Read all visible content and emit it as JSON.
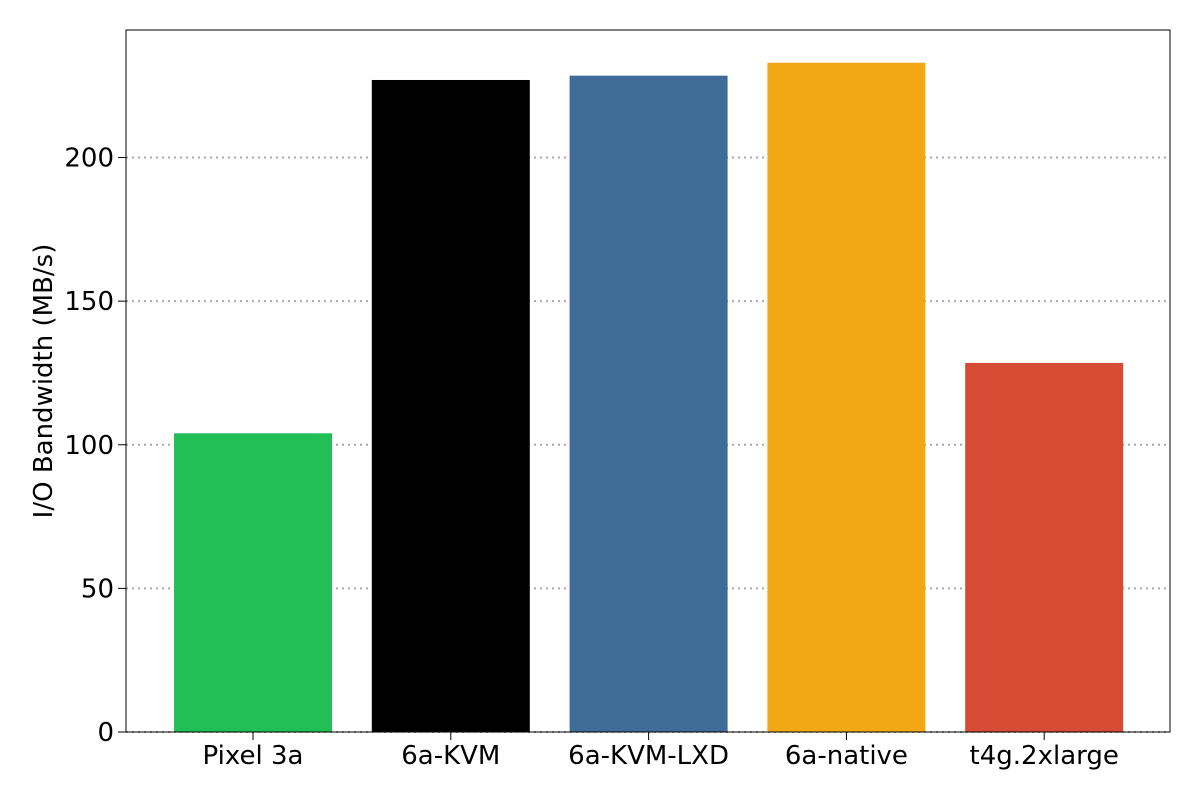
{
  "chart_data": {
    "type": "bar",
    "title": "",
    "xlabel": "",
    "ylabel": "I/O Bandwidth (MB/s)",
    "categories": [
      "Pixel 3a",
      "6a-KVM",
      "6a-KVM-LXD",
      "6a-native",
      "t4g.2xlarge"
    ],
    "values": [
      104,
      227,
      228.5,
      233,
      128.5
    ],
    "colors": [
      "#22bf57",
      "#000000",
      "#3f6b99",
      "#f2a715",
      "#d64b34"
    ],
    "ylim": [
      0,
      244.4
    ],
    "yticks": [
      0,
      50,
      100,
      150,
      200
    ],
    "ytick_labels": [
      "0",
      "50",
      "100",
      "150",
      "200"
    ],
    "grid": {
      "axis": "y",
      "style": "dotted",
      "color": "#a8a8a8"
    },
    "legend": "none"
  }
}
